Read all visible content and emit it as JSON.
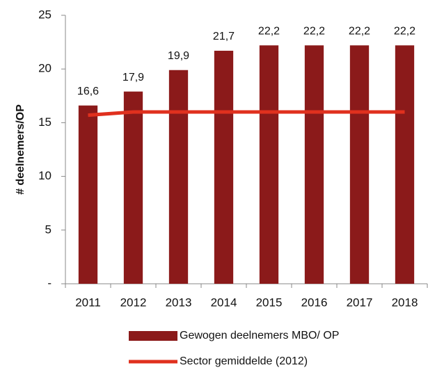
{
  "chart_data": {
    "type": "bar",
    "y_label": "# deelnemers/OP",
    "categories": [
      "2011",
      "2012",
      "2013",
      "2014",
      "2015",
      "2016",
      "2017",
      "2018"
    ],
    "series": [
      {
        "name": "Gewogen deelnemers MBO/ OP",
        "type": "bar",
        "color": "#8b1a1a",
        "values": [
          16.6,
          17.9,
          19.9,
          21.7,
          22.2,
          22.2,
          22.2,
          22.2
        ],
        "value_labels": [
          "16,6",
          "17,9",
          "19,9",
          "21,7",
          "22,2",
          "22,2",
          "22,2",
          "22,2"
        ]
      },
      {
        "name": "Sector gemiddelde (2012)",
        "type": "line",
        "color": "#e0301e",
        "values": [
          15.7,
          16,
          16,
          16,
          16,
          16,
          16,
          16
        ]
      }
    ],
    "ylim": [
      0,
      25
    ],
    "yticks": [
      {
        "value": 0,
        "label": "-"
      },
      5,
      10,
      15,
      20,
      25
    ],
    "grid": false,
    "legend": "bottom"
  }
}
